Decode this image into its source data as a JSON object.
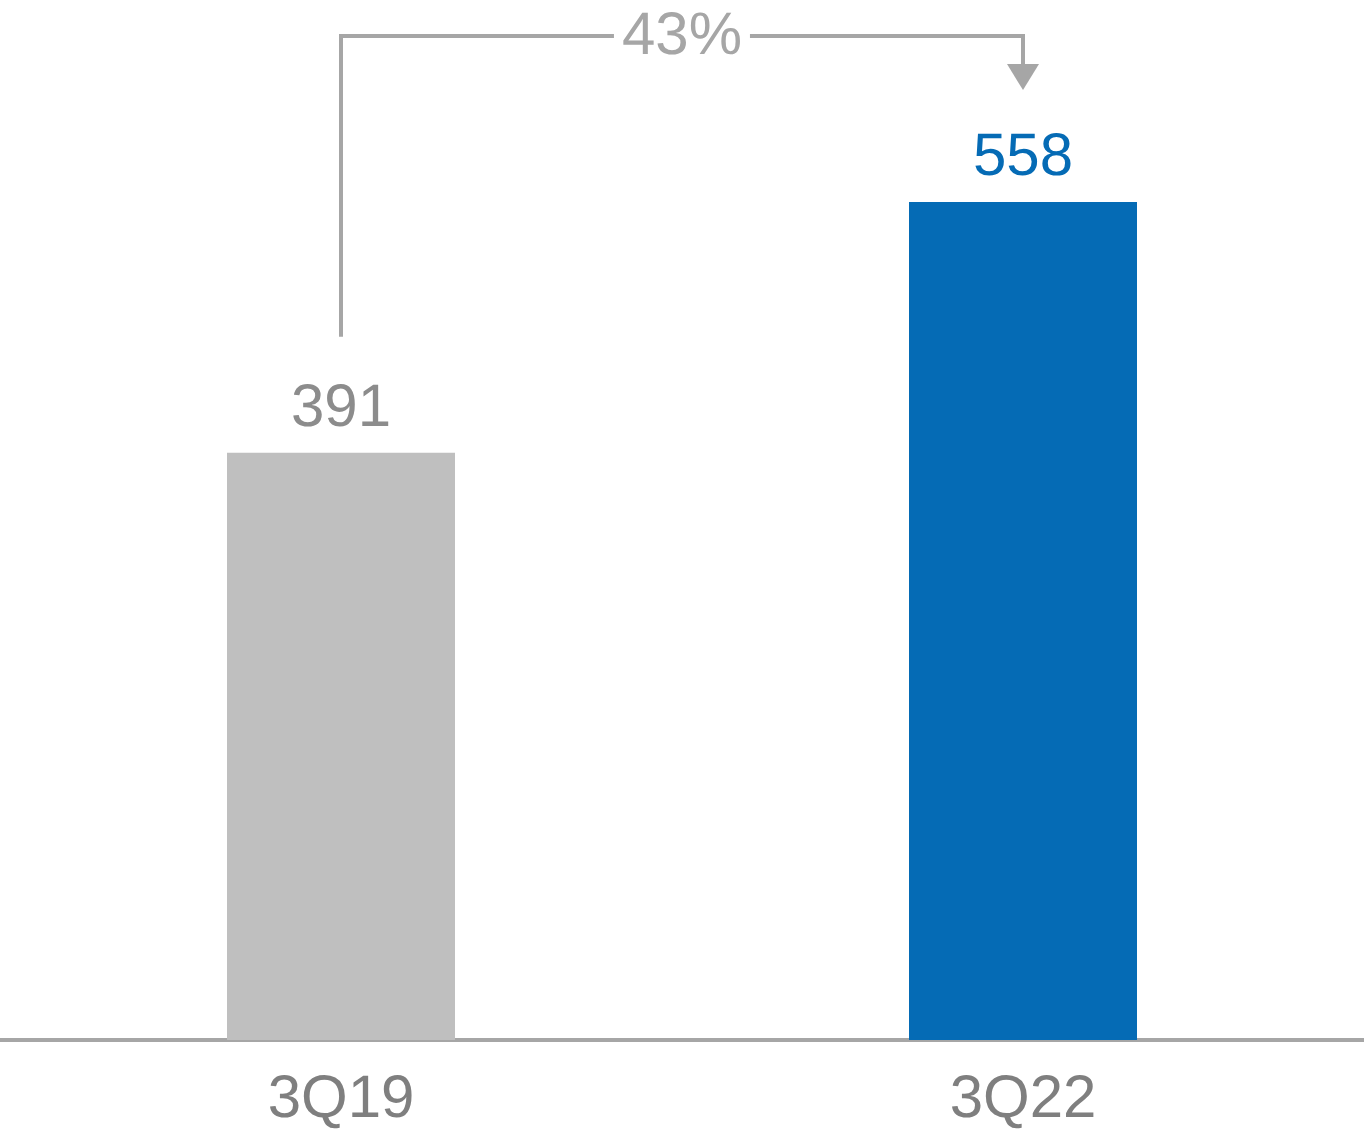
{
  "chart_data": {
    "type": "bar",
    "categories": [
      "3Q19",
      "3Q22"
    ],
    "values": [
      391,
      558
    ],
    "colors": [
      "#bfbfbf",
      "#056bb5"
    ],
    "data_labels": true,
    "annotations": [
      "43%"
    ]
  }
}
